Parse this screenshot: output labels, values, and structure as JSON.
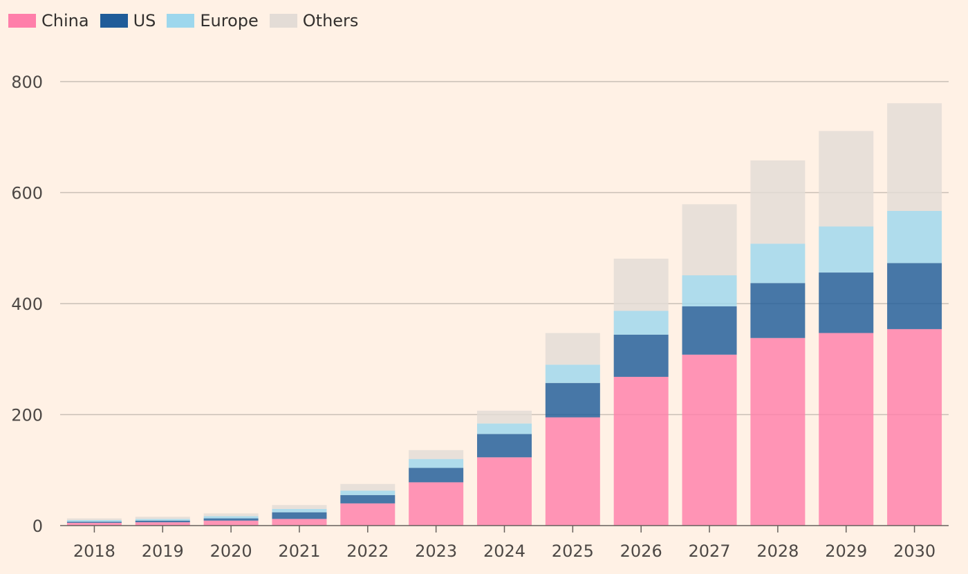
{
  "chart_data": {
    "type": "bar",
    "stacked": true,
    "categories": [
      "2018",
      "2019",
      "2020",
      "2021",
      "2022",
      "2023",
      "2024",
      "2025",
      "2026",
      "2027",
      "2028",
      "2029",
      "2030"
    ],
    "series": [
      {
        "name": "China",
        "color": "#ff7faa",
        "values": [
          5,
          6,
          9,
          12,
          40,
          78,
          123,
          195,
          268,
          308,
          338,
          347,
          354
        ]
      },
      {
        "name": "US",
        "color": "#1f5c99",
        "values": [
          2,
          3,
          4,
          12,
          15,
          26,
          42,
          62,
          76,
          87,
          99,
          109,
          119
        ]
      },
      {
        "name": "Europe",
        "color": "#9dd7ed",
        "values": [
          3,
          3,
          4,
          6,
          8,
          16,
          19,
          33,
          43,
          56,
          71,
          83,
          94
        ]
      },
      {
        "name": "Others",
        "color": "#e3dcd6",
        "values": [
          3,
          4,
          5,
          7,
          12,
          16,
          23,
          57,
          94,
          128,
          150,
          172,
          194
        ]
      }
    ],
    "yticks": [
      "0",
      "200",
      "400",
      "600",
      "800"
    ],
    "ylim": [
      0,
      800
    ],
    "grid": true,
    "legend_position": "top-left"
  }
}
